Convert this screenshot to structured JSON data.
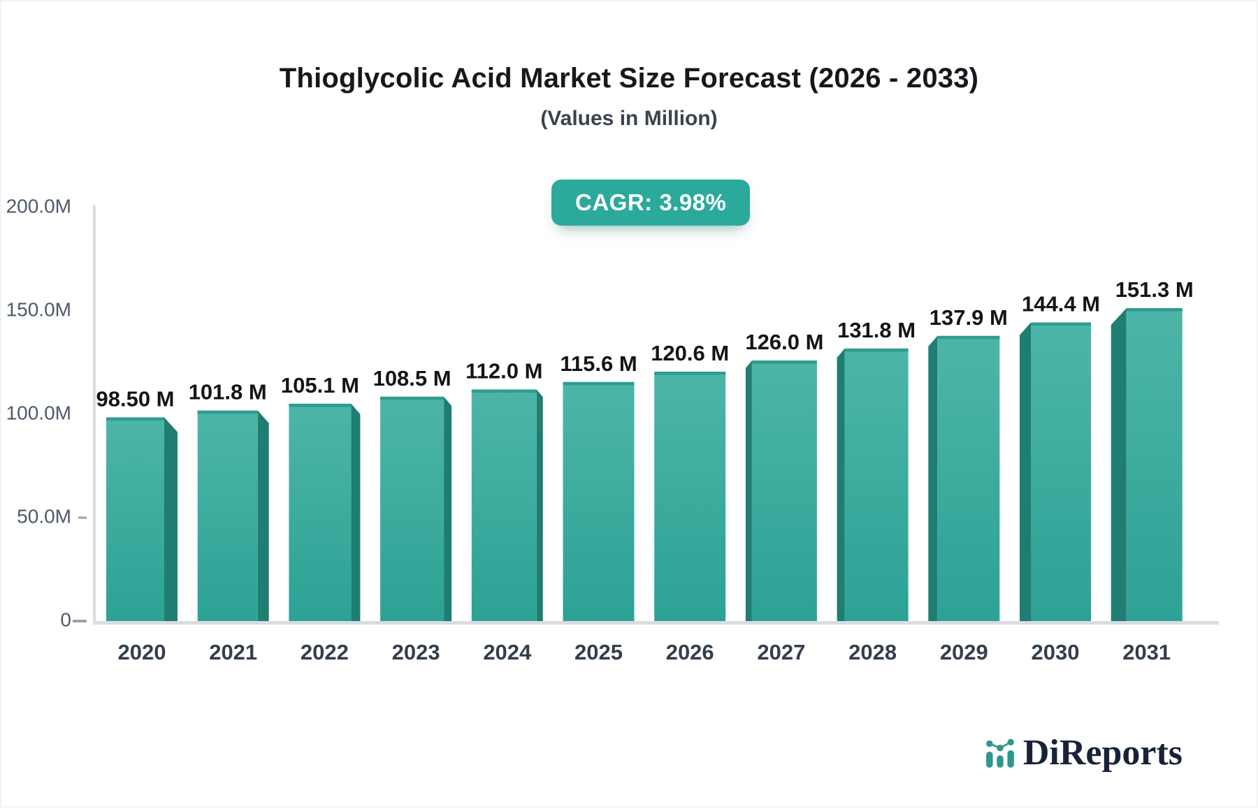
{
  "header": {
    "title": "Thioglycolic Acid Market Size Forecast (2026 - 2033)",
    "subtitle": "(Values in Million)"
  },
  "badge": {
    "label": "CAGR: 3.98%"
  },
  "chart_data": {
    "type": "bar",
    "title": "Thioglycolic Acid Market Size Forecast (2026 - 2033)",
    "subtitle": "(Values in Million)",
    "categories": [
      "2020",
      "2021",
      "2022",
      "2023",
      "2024",
      "2025",
      "2026",
      "2027",
      "2028",
      "2029",
      "2030",
      "2031"
    ],
    "values": [
      98.5,
      101.8,
      105.1,
      108.5,
      112.0,
      115.6,
      120.6,
      126.0,
      131.8,
      137.9,
      144.4,
      151.3
    ],
    "value_labels": [
      "98.50 M",
      "101.8 M",
      "105.1 M",
      "108.5 M",
      "112.0 M",
      "115.6 M",
      "120.6 M",
      "126.0 M",
      "131.8 M",
      "137.9 M",
      "144.4 M",
      "151.3 M"
    ],
    "xlabel": "",
    "ylabel": "",
    "ylim": [
      0,
      200
    ],
    "y_ticks": [
      {
        "label": "200.0M",
        "value": 200
      },
      {
        "label": "150.0M",
        "value": 150
      },
      {
        "label": "100.0M",
        "value": 100
      },
      {
        "label": "50.0M",
        "value": 50
      },
      {
        "label": "0",
        "value": 0
      }
    ],
    "grid": false,
    "legend": false,
    "style": "3d-perspective-bars"
  },
  "colors": {
    "bar_front_top": "#4DB5A8",
    "bar_front_bottom": "#2CA295",
    "bar_side": "#1F7D72",
    "bar_top_strip": "#2E9C8F",
    "axis_line": "#d9dde2",
    "badge_bg": "#2BA99B",
    "logo_teal": "#2E968D",
    "logo_navy": "#17233a"
  },
  "logo": {
    "text": "DiReports",
    "icon": "mini-bar-line-chart-icon"
  }
}
